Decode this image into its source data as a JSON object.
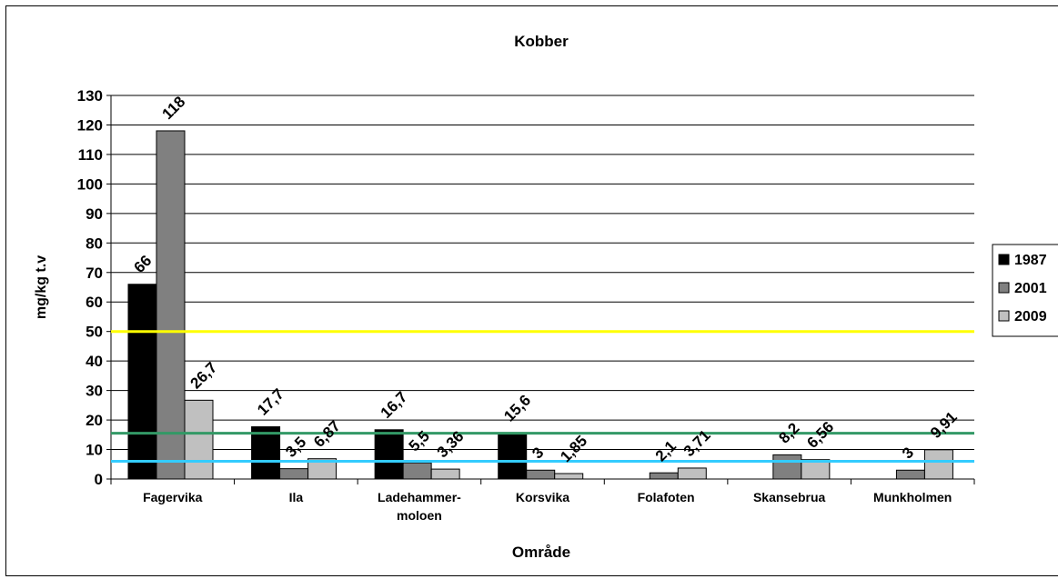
{
  "chart_data": {
    "type": "bar",
    "title": "Kobber",
    "xlabel": "Område",
    "ylabel": "mg/kg t.v",
    "ylim": [
      0,
      130
    ],
    "yticks": [
      "0",
      "10",
      "20",
      "30",
      "40",
      "50",
      "60",
      "70",
      "80",
      "90",
      "100",
      "110",
      "120",
      "130"
    ],
    "categories": [
      [
        "Fagervika"
      ],
      [
        "Ila"
      ],
      [
        "Ladehammer-",
        "moloen"
      ],
      [
        "Korsvika"
      ],
      [
        "Folafoten"
      ],
      [
        "Skansebrua"
      ],
      [
        "Munkholmen"
      ]
    ],
    "series": [
      {
        "name": "1987",
        "color": "#000000",
        "values": [
          66,
          17.7,
          16.7,
          15.6,
          null,
          null,
          null
        ],
        "labels": [
          "66",
          "17,7",
          "16,7",
          "15,6",
          "",
          "",
          ""
        ]
      },
      {
        "name": "2001",
        "color": "#808080",
        "values": [
          118,
          3.5,
          5.5,
          3,
          2.1,
          8.2,
          3
        ],
        "labels": [
          "118",
          "3,5",
          "5,5",
          "3",
          "2,1",
          "8,2",
          "3"
        ]
      },
      {
        "name": "2009",
        "color": "#c0c0c0",
        "values": [
          26.7,
          6.87,
          3.36,
          1.85,
          3.71,
          6.56,
          9.91
        ],
        "labels": [
          "26,7",
          "6,87",
          "3,36",
          "1,85",
          "3,71",
          "6,56",
          "9,91"
        ]
      }
    ],
    "reference_lines": [
      {
        "value": 50,
        "color": "#ffff00"
      },
      {
        "value": 15.5,
        "color": "#339966"
      },
      {
        "value": 6,
        "color": "#33ccff"
      }
    ],
    "grid": true,
    "legend_position": "right"
  }
}
